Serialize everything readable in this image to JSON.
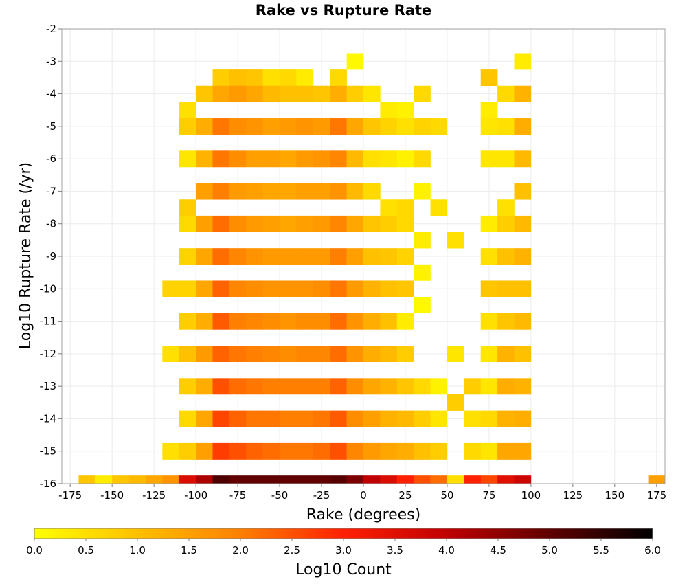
{
  "chart_data": {
    "type": "heatmap",
    "title": "Rake vs Rupture Rate",
    "xlabel": "Rake (degrees)",
    "ylabel": "Log10 Rupture Rate (/yr)",
    "colorbar_label": "Log10 Count",
    "xlim": [
      -180,
      180
    ],
    "ylim": [
      -16,
      -2
    ],
    "x_ticks": [
      -175,
      -150,
      -125,
      -100,
      -75,
      -50,
      -25,
      0,
      25,
      50,
      75,
      100,
      125,
      150,
      175
    ],
    "y_ticks": [
      -2,
      -3,
      -4,
      -5,
      -6,
      -7,
      -8,
      -9,
      -10,
      -11,
      -12,
      -13,
      -14,
      -15,
      -16
    ],
    "colorbar_ticks": [
      0.0,
      0.5,
      1.0,
      1.5,
      2.0,
      2.5,
      3.0,
      3.5,
      4.0,
      4.5,
      5.0,
      5.5,
      6.0
    ],
    "colorbar_range": [
      0,
      6
    ],
    "colorbar_stops": [
      "#ffff00",
      "#ffc000",
      "#ff8000",
      "#ff2000",
      "#c00000",
      "#600000",
      "#000000"
    ],
    "grid": true,
    "colorbar_placement": "bottom",
    "cell_width": 10,
    "cell_height": 0.5,
    "columns": [
      {
        "x": -165,
        "cells": [
          [
            -16,
            0.9
          ]
        ]
      },
      {
        "x": -155,
        "cells": [
          [
            -16,
            0.3
          ]
        ]
      },
      {
        "x": -145,
        "cells": [
          [
            -16,
            0.9
          ]
        ]
      },
      {
        "x": -135,
        "cells": [
          [
            -16,
            1.1
          ]
        ]
      },
      {
        "x": -125,
        "cells": [
          [
            -16,
            1.4
          ]
        ]
      },
      {
        "x": -115,
        "cells": [
          [
            -16,
            1.7
          ],
          [
            -15,
            0.5
          ],
          [
            -12,
            0.5
          ],
          [
            -10,
            0.7
          ]
        ]
      },
      {
        "x": -105,
        "cells": [
          [
            -16,
            3.6
          ],
          [
            -4.5,
            0.5
          ],
          [
            -5,
            0.8
          ],
          [
            -6,
            0.4
          ],
          [
            -7.5,
            0.8
          ],
          [
            -8,
            0.6
          ],
          [
            -9,
            0.7
          ],
          [
            -10,
            0.7
          ],
          [
            -11,
            0.8
          ],
          [
            -12,
            1.0
          ],
          [
            -13,
            0.8
          ],
          [
            -14,
            0.6
          ],
          [
            -15,
            0.8
          ]
        ]
      },
      {
        "x": -95,
        "cells": [
          [
            -16,
            4.2
          ],
          [
            -4,
            0.9
          ],
          [
            -5,
            1.3
          ],
          [
            -6,
            1.2
          ],
          [
            -7,
            1.5
          ],
          [
            -8,
            1.5
          ],
          [
            -9,
            1.4
          ],
          [
            -10,
            1.4
          ],
          [
            -11,
            1.3
          ],
          [
            -12,
            1.6
          ],
          [
            -13,
            1.3
          ],
          [
            -14,
            1.4
          ],
          [
            -15,
            1.5
          ]
        ]
      },
      {
        "x": -85,
        "cells": [
          [
            -16,
            5.2
          ],
          [
            -3.5,
            0.8
          ],
          [
            -4,
            1.4
          ],
          [
            -5,
            2.1
          ],
          [
            -6,
            2.1
          ],
          [
            -7,
            2.0
          ],
          [
            -8,
            2.2
          ],
          [
            -9,
            2.2
          ],
          [
            -10,
            2.3
          ],
          [
            -11,
            2.4
          ],
          [
            -12,
            2.3
          ],
          [
            -13,
            2.5
          ],
          [
            -14,
            2.6
          ],
          [
            -15,
            2.7
          ]
        ]
      },
      {
        "x": -75,
        "cells": [
          [
            -16,
            5.0
          ],
          [
            -3.5,
            1.0
          ],
          [
            -4,
            1.6
          ],
          [
            -5,
            1.8
          ],
          [
            -6,
            1.8
          ],
          [
            -7,
            1.6
          ],
          [
            -8,
            1.8
          ],
          [
            -9,
            1.9
          ],
          [
            -10,
            1.9
          ],
          [
            -11,
            2.0
          ],
          [
            -12,
            2.1
          ],
          [
            -13,
            2.2
          ],
          [
            -14,
            2.3
          ],
          [
            -15,
            2.5
          ]
        ]
      },
      {
        "x": -65,
        "cells": [
          [
            -16,
            5.0
          ],
          [
            -3.5,
            0.9
          ],
          [
            -4,
            1.4
          ],
          [
            -5,
            1.7
          ],
          [
            -6,
            1.5
          ],
          [
            -7,
            1.5
          ],
          [
            -8,
            1.6
          ],
          [
            -9,
            1.7
          ],
          [
            -10,
            1.8
          ],
          [
            -11,
            1.9
          ],
          [
            -12,
            2.0
          ],
          [
            -13,
            2.1
          ],
          [
            -14,
            2.1
          ],
          [
            -15,
            2.3
          ]
        ]
      },
      {
        "x": -55,
        "cells": [
          [
            -16,
            5.0
          ],
          [
            -3.5,
            0.5
          ],
          [
            -4,
            1.1
          ],
          [
            -5,
            1.5
          ],
          [
            -6,
            1.5
          ],
          [
            -7,
            1.4
          ],
          [
            -8,
            1.5
          ],
          [
            -9,
            1.6
          ],
          [
            -10,
            1.7
          ],
          [
            -11,
            1.8
          ],
          [
            -12,
            1.9
          ],
          [
            -13,
            2.0
          ],
          [
            -14,
            2.1
          ],
          [
            -15,
            2.2
          ]
        ]
      },
      {
        "x": -45,
        "cells": [
          [
            -16,
            5.0
          ],
          [
            -3.5,
            0.6
          ],
          [
            -4,
            1.0
          ],
          [
            -5,
            1.6
          ],
          [
            -6,
            1.4
          ],
          [
            -7,
            1.4
          ],
          [
            -8,
            1.4
          ],
          [
            -9,
            1.6
          ],
          [
            -10,
            1.7
          ],
          [
            -11,
            1.7
          ],
          [
            -12,
            1.8
          ],
          [
            -13,
            2.0
          ],
          [
            -14,
            2.0
          ],
          [
            -15,
            2.1
          ]
        ]
      },
      {
        "x": -35,
        "cells": [
          [
            -16,
            5.0
          ],
          [
            -3.5,
            0.3
          ],
          [
            -4,
            1.0
          ],
          [
            -5,
            1.7
          ],
          [
            -6,
            1.6
          ],
          [
            -7,
            1.5
          ],
          [
            -8,
            1.5
          ],
          [
            -9,
            1.6
          ],
          [
            -10,
            1.7
          ],
          [
            -11,
            1.8
          ],
          [
            -12,
            1.9
          ],
          [
            -13,
            2.0
          ],
          [
            -14,
            2.0
          ],
          [
            -15,
            2.1
          ]
        ]
      },
      {
        "x": -25,
        "cells": [
          [
            -16,
            5.0
          ],
          [
            -4,
            0.9
          ],
          [
            -5,
            1.6
          ],
          [
            -6,
            1.7
          ],
          [
            -7,
            1.5
          ],
          [
            -8,
            1.6
          ],
          [
            -9,
            1.6
          ],
          [
            -10,
            1.8
          ],
          [
            -11,
            1.8
          ],
          [
            -12,
            1.9
          ],
          [
            -13,
            2.0
          ],
          [
            -14,
            2.1
          ],
          [
            -15,
            2.2
          ]
        ]
      },
      {
        "x": -15,
        "cells": [
          [
            -16,
            5.1
          ],
          [
            -3.5,
            0.6
          ],
          [
            -4,
            1.3
          ],
          [
            -5,
            2.1
          ],
          [
            -6,
            1.9
          ],
          [
            -7,
            1.7
          ],
          [
            -8,
            1.9
          ],
          [
            -9,
            2.0
          ],
          [
            -10,
            2.1
          ],
          [
            -11,
            2.2
          ],
          [
            -12,
            2.2
          ],
          [
            -13,
            2.3
          ],
          [
            -14,
            2.4
          ],
          [
            -15,
            2.5
          ]
        ]
      },
      {
        "x": -5,
        "cells": [
          [
            -16,
            4.7
          ],
          [
            -3,
            0.1
          ],
          [
            -4,
            0.8
          ],
          [
            -5,
            1.4
          ],
          [
            -6,
            1.1
          ],
          [
            -7,
            1.1
          ],
          [
            -8,
            1.4
          ],
          [
            -9,
            1.5
          ],
          [
            -10,
            1.6
          ],
          [
            -11,
            1.7
          ],
          [
            -12,
            1.7
          ],
          [
            -13,
            1.8
          ],
          [
            -14,
            1.8
          ],
          [
            -15,
            1.9
          ]
        ]
      },
      {
        "x": 5,
        "cells": [
          [
            -16,
            4.0
          ],
          [
            -4,
            0.4
          ],
          [
            -5,
            0.9
          ],
          [
            -6,
            0.5
          ],
          [
            -7,
            0.6
          ],
          [
            -8,
            0.9
          ],
          [
            -9,
            1.0
          ],
          [
            -10,
            1.2
          ],
          [
            -11,
            1.3
          ],
          [
            -12,
            1.3
          ],
          [
            -13,
            1.4
          ],
          [
            -14,
            1.5
          ],
          [
            -15,
            1.6
          ]
        ]
      },
      {
        "x": 15,
        "cells": [
          [
            -16,
            3.6
          ],
          [
            -4.5,
            0.3
          ],
          [
            -5,
            0.7
          ],
          [
            -6,
            0.4
          ],
          [
            -7.5,
            0.5
          ],
          [
            -8,
            0.8
          ],
          [
            -9,
            0.9
          ],
          [
            -10,
            1.0
          ],
          [
            -11,
            1.0
          ],
          [
            -12,
            1.1
          ],
          [
            -13,
            1.2
          ],
          [
            -14,
            1.2
          ],
          [
            -15,
            1.4
          ]
        ]
      },
      {
        "x": 25,
        "cells": [
          [
            -16,
            3.0
          ],
          [
            -4.5,
            0.2
          ],
          [
            -5,
            0.5
          ],
          [
            -6,
            0.2
          ],
          [
            -7.5,
            0.6
          ],
          [
            -8,
            0.6
          ],
          [
            -9,
            0.7
          ],
          [
            -10,
            0.9
          ],
          [
            -11,
            0.3
          ],
          [
            -12,
            0.8
          ],
          [
            -13,
            0.9
          ],
          [
            -14,
            1.1
          ],
          [
            -15,
            1.3
          ]
        ]
      },
      {
        "x": 35,
        "cells": [
          [
            -16,
            2.5
          ],
          [
            -4,
            0.6
          ],
          [
            -5,
            0.7
          ],
          [
            -6,
            0.6
          ],
          [
            -7,
            0.2
          ],
          [
            -8.5,
            0.3
          ],
          [
            -9.5,
            0.2
          ],
          [
            -10.5,
            0.1
          ],
          [
            -13,
            0.6
          ],
          [
            -14,
            0.8
          ],
          [
            -15,
            1.0
          ]
        ]
      },
      {
        "x": 45,
        "cells": [
          [
            -16,
            2.2
          ],
          [
            -5,
            0.6
          ],
          [
            -7.5,
            0.5
          ],
          [
            -13,
            0.2
          ],
          [
            -14,
            0.4
          ],
          [
            -15,
            0.8
          ]
        ]
      },
      {
        "x": 55,
        "cells": [
          [
            -16,
            0.5
          ],
          [
            -8.5,
            0.5
          ],
          [
            -12,
            0.4
          ],
          [
            -13.5,
            0.8
          ]
        ]
      },
      {
        "x": 65,
        "cells": [
          [
            -16,
            3.0
          ],
          [
            -13,
            0.8
          ],
          [
            -14,
            0.5
          ],
          [
            -15,
            0.6
          ]
        ]
      },
      {
        "x": 75,
        "cells": [
          [
            -16,
            2.6
          ],
          [
            -3.5,
            0.9
          ],
          [
            -4.5,
            0.3
          ],
          [
            -5,
            0.4
          ],
          [
            -6,
            0.4
          ],
          [
            -8,
            0.3
          ],
          [
            -9,
            0.5
          ],
          [
            -10,
            0.9
          ],
          [
            -11,
            0.5
          ],
          [
            -12,
            0.4
          ],
          [
            -13,
            0.4
          ],
          [
            -14,
            0.6
          ],
          [
            -15,
            0.4
          ]
        ]
      },
      {
        "x": 85,
        "cells": [
          [
            -16,
            3.5
          ],
          [
            -4,
            0.6
          ],
          [
            -5,
            0.5
          ],
          [
            -6,
            0.4
          ],
          [
            -7.5,
            0.5
          ],
          [
            -8,
            0.8
          ],
          [
            -9,
            1.0
          ],
          [
            -10,
            1.0
          ],
          [
            -11,
            0.9
          ],
          [
            -12,
            1.2
          ],
          [
            -13,
            1.3
          ],
          [
            -14,
            1.2
          ],
          [
            -15,
            1.4
          ]
        ]
      },
      {
        "x": 95,
        "cells": [
          [
            -16,
            3.8
          ],
          [
            -3,
            0.3
          ],
          [
            -4,
            1.2
          ],
          [
            -5,
            1.3
          ],
          [
            -6,
            1.1
          ],
          [
            -7,
            1.0
          ],
          [
            -8,
            1.1
          ],
          [
            -9,
            1.2
          ],
          [
            -10,
            1.0
          ],
          [
            -11,
            1.1
          ],
          [
            -12,
            1.0
          ],
          [
            -13,
            1.2
          ],
          [
            -14,
            1.3
          ],
          [
            -15,
            1.4
          ]
        ]
      },
      {
        "x": 175,
        "cells": [
          [
            -16,
            1.5
          ]
        ]
      }
    ]
  }
}
